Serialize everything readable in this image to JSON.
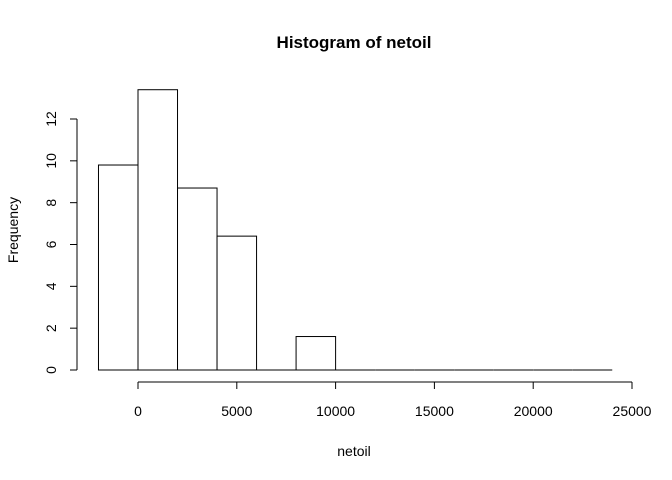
{
  "chart_data": {
    "type": "bar",
    "title": "Histogram of netoil",
    "xlabel": "netoil",
    "ylabel": "Frequency",
    "bins": [
      {
        "x0": -2000,
        "x1": 0,
        "value": 9.8
      },
      {
        "x0": 0,
        "x1": 2000,
        "value": 13.4
      },
      {
        "x0": 2000,
        "x1": 4000,
        "value": 8.7
      },
      {
        "x0": 4000,
        "x1": 6000,
        "value": 6.4
      },
      {
        "x0": 6000,
        "x1": 8000,
        "value": 0
      },
      {
        "x0": 8000,
        "x1": 10000,
        "value": 1.6
      },
      {
        "x0": 10000,
        "x1": 12000,
        "value": 0
      },
      {
        "x0": 12000,
        "x1": 14000,
        "value": 0
      },
      {
        "x0": 14000,
        "x1": 16000,
        "value": 0
      },
      {
        "x0": 16000,
        "x1": 18000,
        "value": 0
      },
      {
        "x0": 18000,
        "x1": 20000,
        "value": 0
      },
      {
        "x0": 20000,
        "x1": 22000,
        "value": 0
      },
      {
        "x0": 22000,
        "x1": 24000,
        "value": 0
      }
    ],
    "xticks": [
      0,
      5000,
      10000,
      15000,
      20000,
      25000
    ],
    "yticks": [
      0,
      2,
      4,
      6,
      8,
      10,
      12
    ],
    "xlim": [
      -2000,
      25000
    ],
    "ylim": [
      0,
      13.4
    ],
    "grid": false,
    "colors": {
      "bar_fill": "#ffffff",
      "bar_stroke": "#000000"
    }
  }
}
